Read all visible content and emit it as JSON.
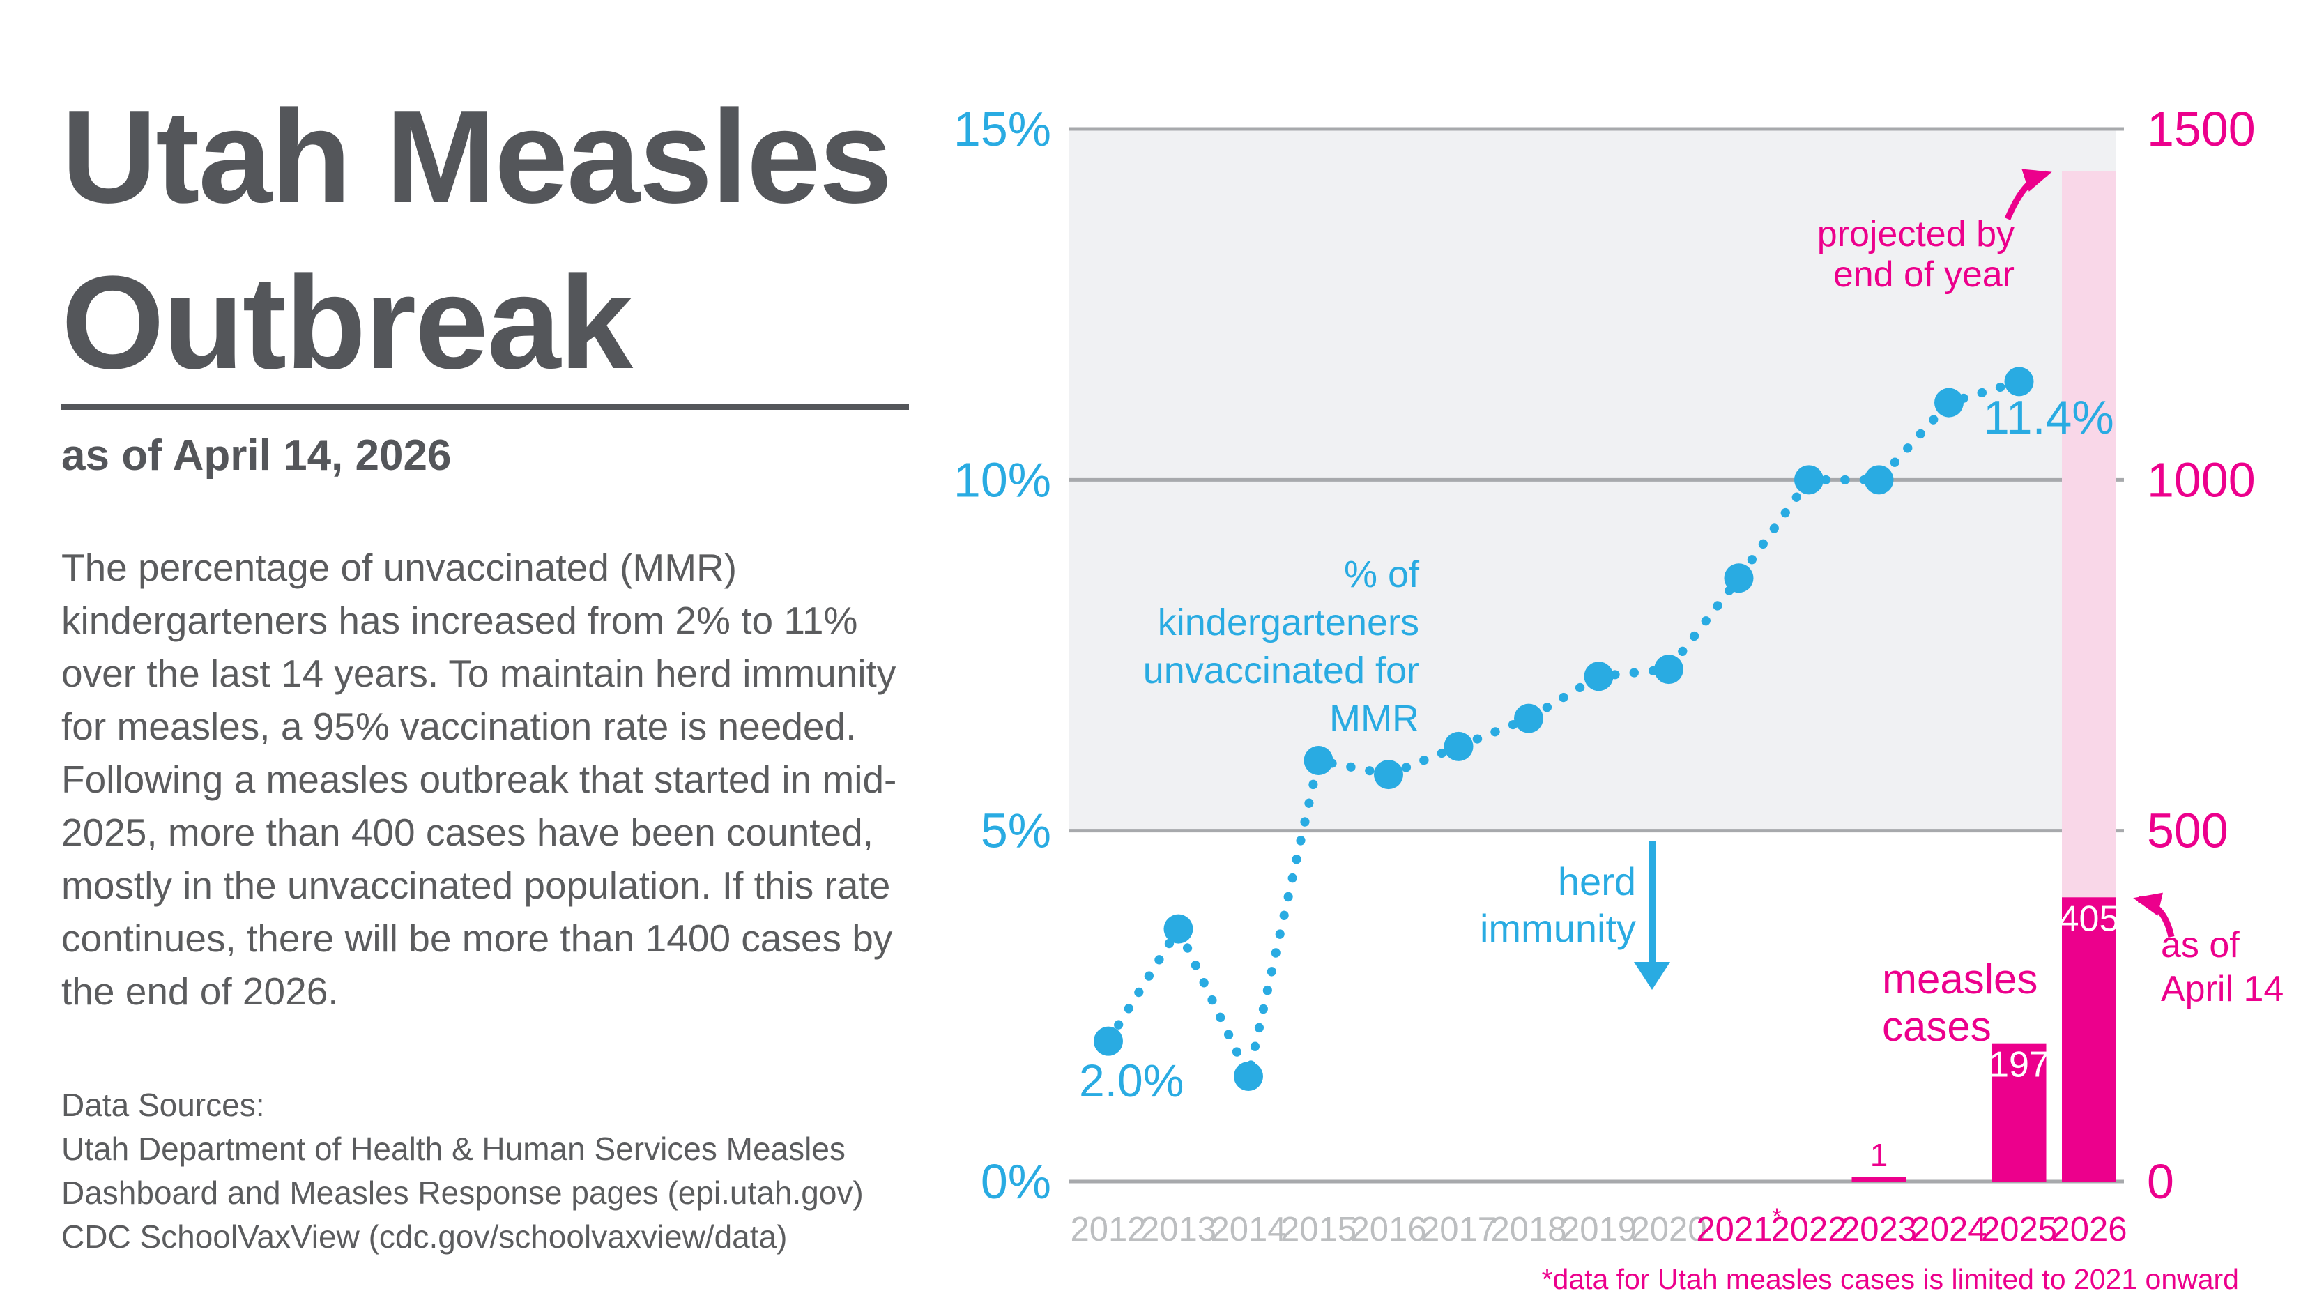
{
  "colors": {
    "blue": "#29ABE2",
    "pink": "#EC008C",
    "light_pink": "#F9D7E8",
    "band_gray": "#F0F1F3",
    "grid_gray": "#A7A9AC",
    "title_gray": "#54565A",
    "body_gray": "#5B5C5E",
    "year_past_gray": "#BCBEC0",
    "bar_label_white": "#FFFFFF"
  },
  "header": {
    "title": "Utah Measles\nOutbreak",
    "subtitle": "as of April 14, 2026",
    "paragraph": "The percentage of unvaccinated (MMR) kindergarteners has increased from 2% to 11% over the last 14 years. To maintain herd immunity for measles, a 95% vaccination rate is needed. Following a measles outbreak that started in mid-2025, more than 400 cases have been counted, mostly in the unvaccinated population. If this rate continues, there will be more than 1400 cases by the end of 2026.",
    "sources": {
      "label": "Data Sources:",
      "line1": "Utah Department of Health & Human Services Measles",
      "line2": "Dashboard and Measles Response pages (epi.utah.gov)",
      "line3": "CDC SchoolVaxView (cdc.gov/schoolvaxview/data)"
    }
  },
  "annotations": {
    "line_label": "% of\nkindergarteners\nunvaccinated for\nMMR",
    "herd_label": "herd\nimmunity",
    "measles_label": "measles\ncases",
    "projected_label": "projected by\nend of year",
    "as_of_label": "as of\nApril 14",
    "first_point_label": "2.0%",
    "last_point_label": "11.4%",
    "footnote": "*data for Utah measles cases is limited to 2021 onward"
  },
  "chart_data": {
    "type": "line+bar",
    "title": "Utah Measles Outbreak as of April 14, 2026",
    "x": [
      "2012",
      "2013",
      "2014",
      "2015",
      "2016",
      "2017",
      "2018",
      "2019",
      "2020",
      "2021",
      "2022",
      "2023",
      "2024",
      "2025",
      "2026"
    ],
    "x_labels": [
      {
        "text": "2012",
        "recent": false
      },
      {
        "text": "2013",
        "recent": false
      },
      {
        "text": "2014",
        "recent": false
      },
      {
        "text": "2015",
        "recent": false
      },
      {
        "text": "2016",
        "recent": false
      },
      {
        "text": "2017",
        "recent": false
      },
      {
        "text": "2018",
        "recent": false
      },
      {
        "text": "2019",
        "recent": false
      },
      {
        "text": "2020",
        "recent": false
      },
      {
        "text": "2021",
        "sup": "*",
        "recent": true
      },
      {
        "text": "2022",
        "recent": true
      },
      {
        "text": "2023",
        "recent": true
      },
      {
        "text": "2024",
        "recent": true
      },
      {
        "text": "2025",
        "recent": true
      },
      {
        "text": "2026",
        "recent": true
      }
    ],
    "line_series": {
      "name": "% of kindergarteners unvaccinated for MMR",
      "color": "#29ABE2",
      "years": [
        2012,
        2013,
        2014,
        2015,
        2016,
        2017,
        2018,
        2019,
        2020,
        2021,
        2022,
        2023,
        2024,
        2025
      ],
      "values": [
        2.0,
        3.6,
        1.5,
        6.0,
        5.8,
        6.2,
        6.6,
        7.2,
        7.3,
        8.6,
        10.0,
        10.0,
        11.1,
        11.4
      ],
      "first_label": "2.0%",
      "last_label": "11.4%"
    },
    "bar_series": {
      "name": "measles cases",
      "color": "#EC008C",
      "projected_color": "#F9D7E8",
      "bars": [
        {
          "year": 2023,
          "value": 1,
          "label": "1",
          "label_inside": false
        },
        {
          "year": 2025,
          "value": 197,
          "label": "197",
          "label_inside": true
        },
        {
          "year": 2026,
          "value": 405,
          "label": "405",
          "label_inside": true,
          "projected_value": 1440
        }
      ]
    },
    "left_axis": {
      "ticks": [
        "0%",
        "5%",
        "10%",
        "15%"
      ],
      "values": [
        0,
        5,
        10,
        15
      ],
      "max": 15,
      "color": "#29ABE2"
    },
    "right_axis": {
      "ticks": [
        "0",
        "500",
        "1000",
        "1500"
      ],
      "values": [
        0,
        500,
        1000,
        1500
      ],
      "max": 1500,
      "color": "#EC008C"
    },
    "band": {
      "from_pct": 5,
      "to_pct": 15,
      "color": "#F0F1F3"
    },
    "grid_color": "#A7A9AC",
    "x_label_color_past": "#BCBEC0",
    "x_label_color_recent": "#EC008C",
    "legend_position": "annotations-inline",
    "grid": "horizontal-only"
  }
}
